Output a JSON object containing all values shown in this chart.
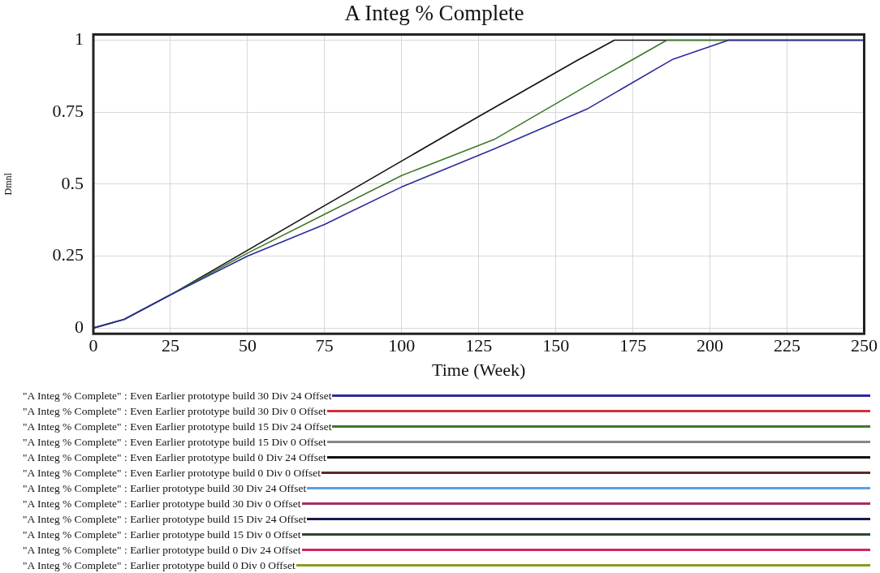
{
  "chart_data": {
    "type": "line",
    "title": "A Integ % Complete",
    "xlabel": "Time (Week)",
    "ylabel": "Dmnl",
    "xlim": [
      0,
      250
    ],
    "xticks": [
      0,
      25,
      50,
      75,
      100,
      125,
      150,
      175,
      200,
      225,
      250
    ],
    "ylim": [
      -0.02,
      1.02
    ],
    "yticks": [
      0,
      0.25,
      0.5,
      0.75,
      1
    ],
    "grid": true,
    "legend": "bottom",
    "marker": "none",
    "line_style": "solid",
    "series": [
      {
        "name": "\"A Integ % Complete\" : Even Earlier prototype build 30 Div 24 Offset",
        "color": "#2b2b9c",
        "x": [
          0,
          10,
          25,
          50,
          75,
          100,
          130,
          160,
          188,
          206,
          250
        ],
        "values": [
          0,
          0.03,
          0.115,
          0.25,
          0.36,
          0.49,
          0.622,
          0.76,
          0.934,
          1,
          1
        ]
      },
      {
        "name": "\"A Integ % Complete\" : Even Earlier prototype build 30 Div 0 Offset",
        "color": "#d0303a",
        "values": [
          null
        ]
      },
      {
        "name": "\"A Integ % Complete\" : Even Earlier prototype build 15 Div 24 Offset",
        "color": "#3d7a2a",
        "x": [
          0,
          10,
          25,
          50,
          75,
          100,
          130,
          163,
          186,
          250
        ],
        "values": [
          0,
          0.03,
          0.115,
          0.26,
          0.395,
          0.53,
          0.655,
          0.86,
          1,
          1
        ]
      },
      {
        "name": "\"A Integ % Complete\" : Even Earlier prototype build 15 Div 0 Offset",
        "color": "#888888",
        "values": [
          null
        ]
      },
      {
        "name": "\"A Integ % Complete\" : Even Earlier prototype build 0 Div 24 Offset",
        "color": "#111111",
        "x": [
          0,
          10,
          25,
          50,
          75,
          100,
          125,
          157,
          169,
          250
        ],
        "values": [
          0,
          0.03,
          0.115,
          0.27,
          0.425,
          0.58,
          0.735,
          0.93,
          1,
          1
        ]
      },
      {
        "name": "\"A Integ % Complete\" : Even Earlier prototype build 0 Div 0 Offset",
        "color": "#5a2a20",
        "values": [
          null
        ]
      },
      {
        "name": "\"A Integ % Complete\" : Earlier prototype build 30 Div 24 Offset",
        "color": "#5aa0e8",
        "values": [
          null
        ]
      },
      {
        "name": "\"A Integ % Complete\" : Earlier prototype build 30 Div 0 Offset",
        "color": "#a03060",
        "values": [
          null
        ]
      },
      {
        "name": "\"A Integ % Complete\" : Earlier prototype build 15 Div 24 Offset",
        "color": "#1a1a50",
        "values": [
          null
        ]
      },
      {
        "name": "\"A Integ % Complete\" : Earlier prototype build 15 Div 0 Offset",
        "color": "#2a4a30",
        "values": [
          null
        ]
      },
      {
        "name": "\"A Integ % Complete\" : Earlier prototype build 0 Div 24 Offset",
        "color": "#d02860",
        "values": [
          null
        ]
      },
      {
        "name": "\"A Integ % Complete\" : Earlier prototype build 0 Div 0 Offset",
        "color": "#8a9a20",
        "values": [
          null
        ]
      }
    ]
  }
}
